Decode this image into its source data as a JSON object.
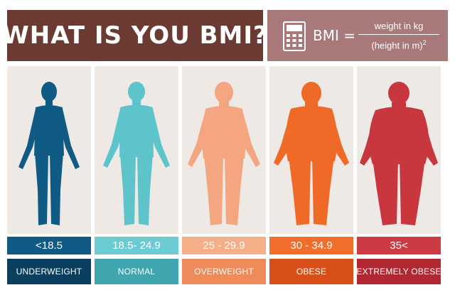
{
  "header": {
    "title": "WHAT IS YOU BMI?",
    "formula_lhs": "BMI =",
    "numerator": "weight in kg",
    "denominator": "(height in m)",
    "exponent": "2",
    "icon": "calculator-icon"
  },
  "categories": [
    {
      "range": "<18.5",
      "label": "UNDERWEIGHT",
      "figure_color": "#0f5b85",
      "range_color": "#0f5b85",
      "label_color": "#0b3f60",
      "icon": "thin-body-icon"
    },
    {
      "range": "18.5- 24.9",
      "label": "NORMAL",
      "figure_color": "#5ec4cc",
      "range_color": "#6ccbd2",
      "label_color": "#3fa6b0",
      "icon": "normal-body-icon"
    },
    {
      "range": "25 - 29.9",
      "label": "OVERWEIGHT",
      "figure_color": "#f3a67f",
      "range_color": "#f6ae89",
      "label_color": "#ef8a5a",
      "icon": "overweight-body-icon"
    },
    {
      "range": "30 - 34.9",
      "label": "OBESE",
      "figure_color": "#ef6a27",
      "range_color": "#f06d2a",
      "label_color": "#d94f19",
      "icon": "obese-body-icon"
    },
    {
      "range": "35<",
      "label": "EXTREMELY OBESE",
      "figure_color": "#c8363e",
      "range_color": "#cc3a44",
      "label_color": "#b12832",
      "icon": "extremely-obese-body-icon"
    }
  ]
}
